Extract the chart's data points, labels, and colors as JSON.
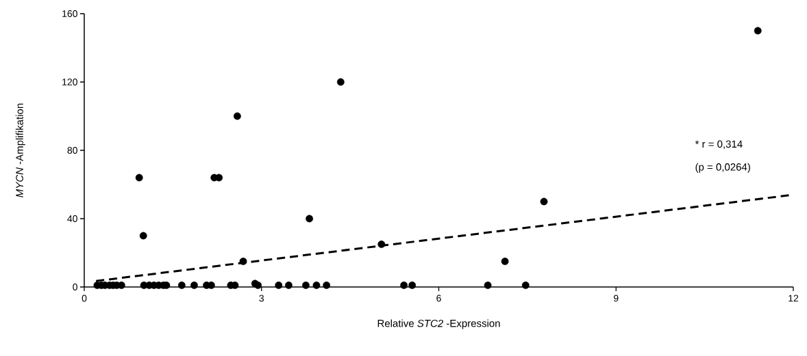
{
  "chart_data": {
    "type": "scatter",
    "xlabel": "Relative *STC2* -Expression",
    "ylabel": "*MYCN* -Amplifikation",
    "xlim": [
      0,
      12
    ],
    "ylim": [
      0,
      160
    ],
    "xticks": [
      0,
      3,
      6,
      9,
      12
    ],
    "yticks": [
      0,
      40,
      80,
      120,
      160
    ],
    "grid": false,
    "series": [
      {
        "marker": "circle",
        "color": "#000000",
        "x": [
          0.22,
          0.29,
          0.35,
          0.43,
          0.49,
          0.55,
          0.63,
          1.01,
          1.1,
          1.18,
          1.26,
          1.34,
          1.39,
          1.65,
          1.86,
          2.07,
          2.15,
          2.48,
          2.55,
          2.89,
          2.94,
          3.29,
          3.46,
          3.75,
          3.93,
          4.1,
          5.41,
          5.55,
          6.83,
          7.47,
          7.12,
          2.69,
          5.03,
          0.93,
          2.2,
          2.28,
          1.0,
          2.59,
          4.34,
          3.81,
          7.78,
          11.4
        ],
        "values": [
          1,
          1,
          1,
          1,
          1,
          1,
          1,
          1,
          1,
          1,
          1,
          1,
          1,
          1,
          1,
          1,
          1,
          1,
          1,
          2,
          1,
          1,
          1,
          1,
          1,
          1,
          1,
          1,
          1,
          1,
          15,
          15,
          25,
          64,
          64,
          64,
          30,
          100,
          120,
          40,
          50,
          150
        ]
      },
      {
        "type": "line",
        "line_style": "dashed",
        "marker": "none",
        "color": "#000000",
        "x": [
          0.2,
          12
        ],
        "values": [
          3.5,
          54
        ]
      }
    ],
    "annotations": [
      "* r = 0,314",
      "(p = 0,0264)"
    ]
  }
}
